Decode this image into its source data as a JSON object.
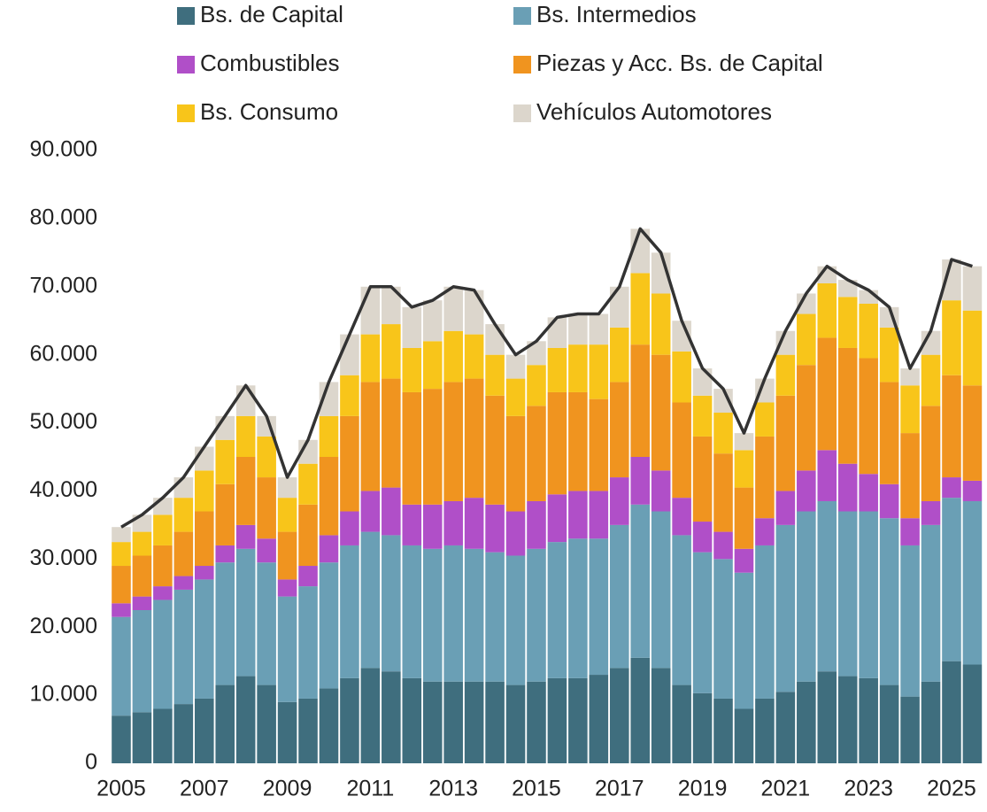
{
  "chart_data": {
    "type": "stacked_bar",
    "x": [
      2005,
      2005.5,
      2006,
      2006.5,
      2007,
      2007.5,
      2008,
      2008.5,
      2009,
      2009.5,
      2010,
      2010.5,
      2011,
      2011.5,
      2012,
      2012.5,
      2013,
      2013.5,
      2014,
      2014.5,
      2015,
      2015.5,
      2016,
      2016.5,
      2017,
      2017.5,
      2018,
      2018.5,
      2019,
      2019.5,
      2020,
      2020.5,
      2021,
      2021.5,
      2022,
      2022.5,
      2023,
      2023.5,
      2024,
      2024.5,
      2025,
      2025.5
    ],
    "series": [
      {
        "name": "Bs. de Capital",
        "color": "#3f6e7e",
        "values": [
          7000,
          7500,
          8000,
          8700,
          9500,
          11500,
          12800,
          11500,
          9000,
          9500,
          11000,
          12500,
          14000,
          13500,
          12500,
          12000,
          12000,
          12000,
          12000,
          11500,
          12000,
          12500,
          12500,
          13000,
          14000,
          15500,
          14000,
          11500,
          10300,
          9500,
          8000,
          9500,
          10500,
          12000,
          13500,
          12800,
          12500,
          11500,
          9800,
          12000,
          15000,
          14500
        ]
      },
      {
        "name": "Bs. Intermedios",
        "color": "#6a9fb5",
        "values": [
          14500,
          15000,
          16000,
          16800,
          17500,
          18000,
          18700,
          18000,
          15500,
          16500,
          18500,
          19500,
          20000,
          20000,
          19500,
          19500,
          20000,
          19500,
          19000,
          19000,
          19500,
          20000,
          20500,
          20000,
          21000,
          22500,
          23000,
          22000,
          20700,
          20500,
          20000,
          22500,
          24500,
          25000,
          25000,
          24200,
          24500,
          24500,
          22200,
          23000,
          24000,
          24000
        ]
      },
      {
        "name": "Combustibles",
        "color": "#b04fc8",
        "values": [
          2000,
          2000,
          2000,
          2000,
          2000,
          2500,
          3500,
          3500,
          2500,
          3000,
          4000,
          5000,
          6000,
          7000,
          6000,
          6500,
          6500,
          7500,
          7000,
          6500,
          7000,
          7000,
          7000,
          7000,
          7000,
          7000,
          6000,
          5500,
          4500,
          4000,
          3500,
          4000,
          5000,
          6000,
          7500,
          7000,
          5500,
          5000,
          4000,
          3500,
          3000,
          3000
        ]
      },
      {
        "name": "Piezas y Acc. Bs. de Capital",
        "color": "#f0941f",
        "values": [
          5500,
          6000,
          6000,
          6500,
          8000,
          9000,
          10000,
          9000,
          7000,
          9000,
          11500,
          14000,
          16000,
          16000,
          16500,
          17000,
          17500,
          17500,
          16000,
          14000,
          14000,
          15000,
          14500,
          13500,
          14000,
          16500,
          17000,
          14000,
          12500,
          11500,
          9000,
          12000,
          14000,
          15500,
          16500,
          17000,
          17000,
          15000,
          12500,
          14000,
          15000,
          14000
        ]
      },
      {
        "name": "Bs. Consumo",
        "color": "#f8c51a",
        "values": [
          3500,
          3500,
          4500,
          5000,
          6000,
          6500,
          6000,
          6000,
          5000,
          6000,
          6000,
          6000,
          7000,
          8000,
          6500,
          7000,
          7500,
          6500,
          6000,
          5500,
          6000,
          6500,
          7000,
          8000,
          8000,
          10500,
          9000,
          7500,
          6000,
          6000,
          5500,
          5000,
          6000,
          7500,
          8000,
          7500,
          8000,
          8000,
          7000,
          7500,
          11000,
          11000
        ]
      },
      {
        "name": "Vehículos Automotores",
        "color": "#dcd6cc",
        "values": [
          2200,
          2500,
          2500,
          3000,
          3500,
          3500,
          4500,
          3000,
          3000,
          3500,
          5000,
          6000,
          7000,
          5500,
          6000,
          6000,
          6500,
          6500,
          4500,
          3500,
          3500,
          4500,
          4500,
          4500,
          6000,
          6500,
          6000,
          4500,
          4000,
          3500,
          2500,
          3500,
          3500,
          3000,
          2500,
          2500,
          2000,
          3000,
          2500,
          3500,
          6000,
          6500
        ]
      }
    ],
    "xlim": [
      2004.8,
      2025.7
    ],
    "xticks": [
      2005,
      2007,
      2009,
      2011,
      2013,
      2015,
      2017,
      2019,
      2021,
      2023,
      2025
    ],
    "ylim": [
      0,
      90000
    ],
    "yticks": [
      0,
      {
        "value": 10000,
        "label": "10.000"
      },
      {
        "value": 20000,
        "label": "20.000"
      },
      {
        "value": 30000,
        "label": "30.000"
      },
      {
        "value": 40000,
        "label": "40.000"
      },
      {
        "value": 50000,
        "label": "50.000"
      },
      {
        "value": 60000,
        "label": "60.000"
      },
      {
        "value": 70000,
        "label": "70.000"
      },
      {
        "value": 80000,
        "label": "80.000"
      },
      {
        "value": {
          "value": 90000,
          "label": "90.000"
        },
        "label": "90.000"
      }
    ],
    "line_color": "#333333"
  }
}
